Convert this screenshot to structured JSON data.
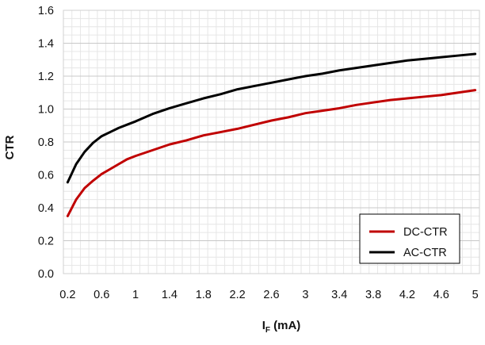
{
  "chart_data": {
    "type": "line",
    "title": "",
    "xlabel": "I",
    "xlabel_sub": "F",
    "xlabel_unit": " (mA)",
    "ylabel": "CTR",
    "xlim": [
      0.15,
      5.05
    ],
    "ylim": [
      0,
      1.6
    ],
    "x_ticks": [
      0.2,
      0.6,
      1,
      1.4,
      1.8,
      2.2,
      2.6,
      3,
      3.4,
      3.8,
      4.2,
      4.6,
      5
    ],
    "x_tick_labels": [
      "0.2",
      "0.6",
      "1",
      "1.4",
      "1.8",
      "2.2",
      "2.6",
      "3",
      "3.4",
      "3.8",
      "4.2",
      "4.6",
      "5"
    ],
    "y_ticks": [
      0,
      0.2,
      0.4,
      0.6,
      0.8,
      1.0,
      1.2,
      1.4,
      1.6
    ],
    "y_tick_labels": [
      "0.0",
      "0.2",
      "0.4",
      "0.6",
      "0.8",
      "1.0",
      "1.2",
      "1.4",
      "1.6"
    ],
    "grid": true,
    "legend_position": "bottom-right",
    "series": [
      {
        "name": "DC-CTR",
        "color": "#c00000",
        "x": [
          0.2,
          0.3,
          0.4,
          0.5,
          0.6,
          0.7,
          0.8,
          0.9,
          1.0,
          1.2,
          1.4,
          1.6,
          1.8,
          2.0,
          2.2,
          2.4,
          2.6,
          2.8,
          3.0,
          3.2,
          3.4,
          3.6,
          3.8,
          4.0,
          4.2,
          4.4,
          4.6,
          4.8,
          5.0
        ],
        "values": [
          0.35,
          0.45,
          0.52,
          0.565,
          0.605,
          0.635,
          0.665,
          0.695,
          0.715,
          0.75,
          0.785,
          0.81,
          0.84,
          0.86,
          0.88,
          0.905,
          0.93,
          0.95,
          0.975,
          0.99,
          1.005,
          1.025,
          1.04,
          1.055,
          1.065,
          1.075,
          1.085,
          1.1,
          1.115
        ]
      },
      {
        "name": "AC-CTR",
        "color": "#000000",
        "x": [
          0.2,
          0.3,
          0.4,
          0.5,
          0.6,
          0.7,
          0.8,
          0.9,
          1.0,
          1.2,
          1.4,
          1.6,
          1.8,
          2.0,
          2.2,
          2.4,
          2.6,
          2.8,
          3.0,
          3.2,
          3.4,
          3.6,
          3.8,
          4.0,
          4.2,
          4.4,
          4.6,
          4.8,
          5.0
        ],
        "values": [
          0.555,
          0.665,
          0.74,
          0.795,
          0.835,
          0.86,
          0.885,
          0.905,
          0.925,
          0.97,
          1.005,
          1.035,
          1.065,
          1.09,
          1.12,
          1.14,
          1.16,
          1.18,
          1.2,
          1.215,
          1.235,
          1.25,
          1.265,
          1.28,
          1.295,
          1.305,
          1.315,
          1.325,
          1.335
        ]
      }
    ]
  }
}
